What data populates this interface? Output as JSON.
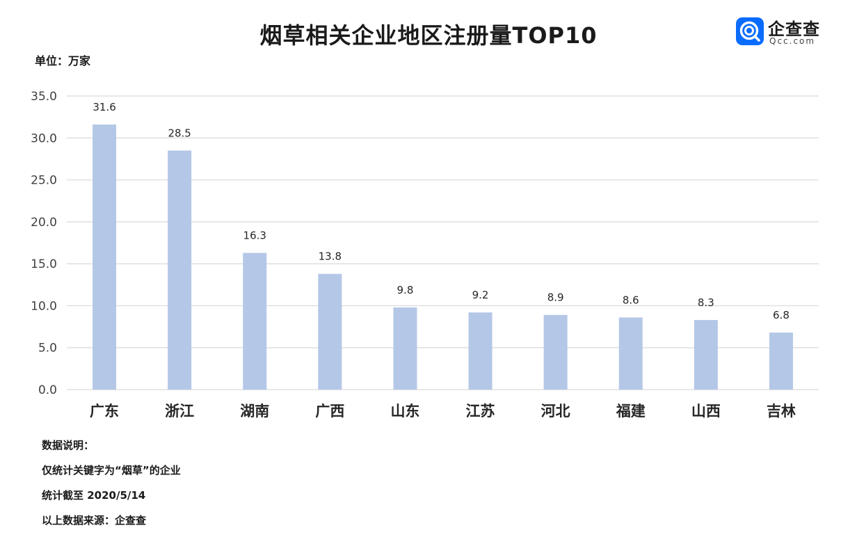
{
  "title": "烟草相关企业地区注册量TOP10",
  "unit_label": "单位：万家",
  "logo": {
    "name": "企查查",
    "subtitle": "Qcc.com",
    "icon": "qcc-logo-icon",
    "color": "#0a6cff"
  },
  "colors": {
    "bar": "#b4c7e7",
    "grid": "#d9d9d9",
    "axis_text": "#404040",
    "label_text": "#262626"
  },
  "chart_data": {
    "type": "bar",
    "categories": [
      "广东",
      "浙江",
      "湖南",
      "广西",
      "山东",
      "江苏",
      "河北",
      "福建",
      "山西",
      "吉林"
    ],
    "values": [
      31.6,
      28.5,
      16.3,
      13.8,
      9.8,
      9.2,
      8.9,
      8.6,
      8.3,
      6.8
    ],
    "data_labels": [
      "31.6",
      "28.5",
      "16.3",
      "13.8",
      "9.8",
      "9.2",
      "8.9",
      "8.6",
      "8.3",
      "6.8"
    ],
    "y_ticks": [
      "0.0",
      "5.0",
      "10.0",
      "15.0",
      "20.0",
      "25.0",
      "30.0",
      "35.0"
    ],
    "ylim": [
      0,
      35
    ],
    "grid": true,
    "legend": "none"
  },
  "notes": {
    "heading": "数据说明：",
    "line1": "仅统计关键字为“烟草”的企业",
    "line2": "统计截至 2020/5/14",
    "line3": "以上数据来源：企查查"
  }
}
